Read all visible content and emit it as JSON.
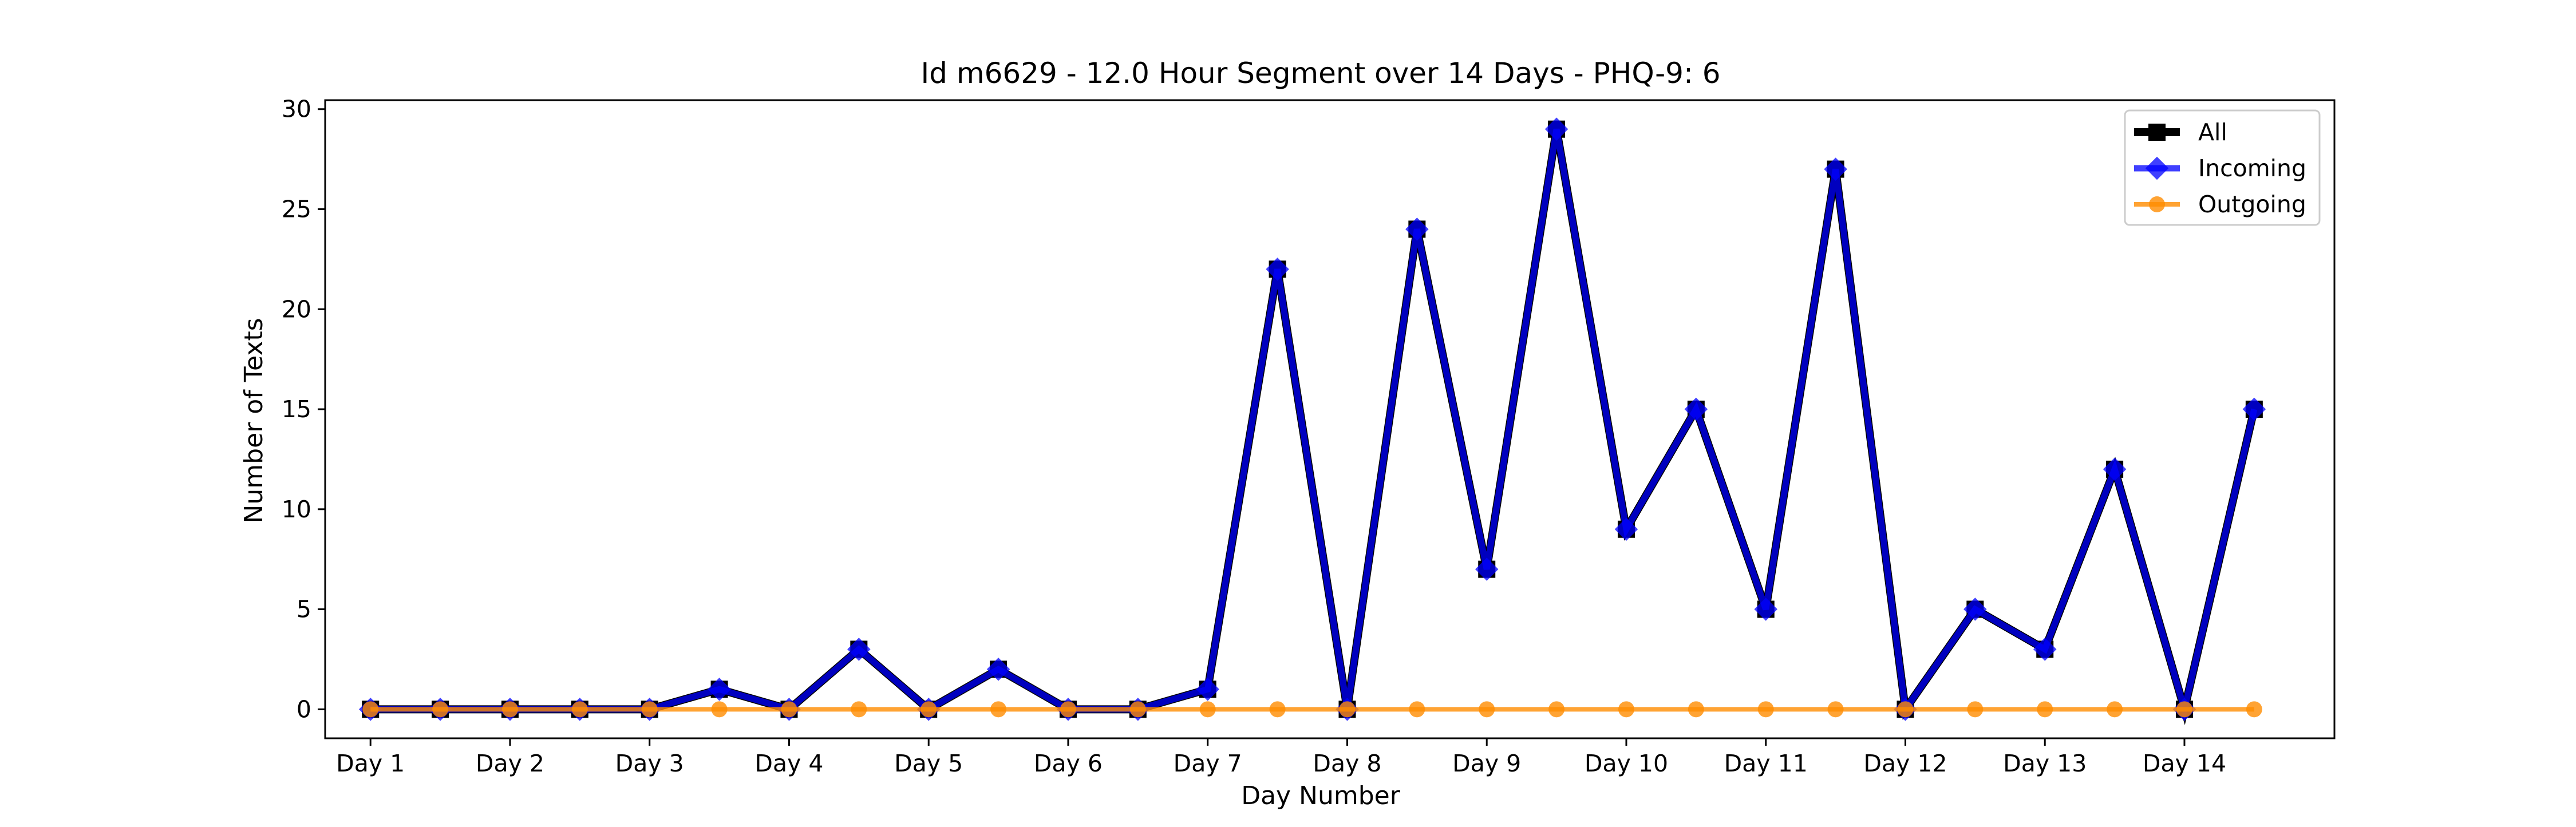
{
  "chart_data": {
    "type": "line",
    "title": "Id m6629 - 12.0 Hour Segment over 14 Days - PHQ-9: 6",
    "xlabel": "Day Number",
    "ylabel": "Number of Texts",
    "x_tick_labels": [
      "Day 1",
      "Day 2",
      "Day 3",
      "Day 4",
      "Day 5",
      "Day 6",
      "Day 7",
      "Day 8",
      "Day 9",
      "Day 10",
      "Day 11",
      "Day 12",
      "Day 13",
      "Day 14"
    ],
    "y_ticks": [
      0,
      5,
      10,
      15,
      20,
      25,
      30
    ],
    "ylim": [
      -1.45,
      30.45
    ],
    "xlim": [
      -0.65,
      28.15
    ],
    "grid": false,
    "legend_position": "top-right",
    "x": [
      0,
      1,
      2,
      3,
      4,
      5,
      6,
      7,
      8,
      9,
      10,
      11,
      12,
      13,
      14,
      15,
      16,
      17,
      18,
      19,
      20,
      21,
      22,
      23,
      24,
      25,
      26,
      27
    ],
    "series": [
      {
        "name": "All",
        "color": "#000000",
        "marker": "square",
        "values": [
          0,
          0,
          0,
          0,
          0,
          1,
          0,
          3,
          0,
          2,
          0,
          0,
          1,
          22,
          0,
          24,
          7,
          29,
          9,
          15,
          5,
          27,
          0,
          5,
          3,
          12,
          0,
          15
        ]
      },
      {
        "name": "Incoming",
        "color": "#0000ff",
        "marker": "diamond",
        "values": [
          0,
          0,
          0,
          0,
          0,
          1,
          0,
          3,
          0,
          2,
          0,
          0,
          1,
          22,
          0,
          24,
          7,
          29,
          9,
          15,
          5,
          27,
          0,
          5,
          3,
          12,
          0,
          15
        ]
      },
      {
        "name": "Outgoing",
        "color": "#ff8c00",
        "marker": "circle",
        "values": [
          0,
          0,
          0,
          0,
          0,
          0,
          0,
          0,
          0,
          0,
          0,
          0,
          0,
          0,
          0,
          0,
          0,
          0,
          0,
          0,
          0,
          0,
          0,
          0,
          0,
          0,
          0,
          0
        ]
      }
    ]
  }
}
